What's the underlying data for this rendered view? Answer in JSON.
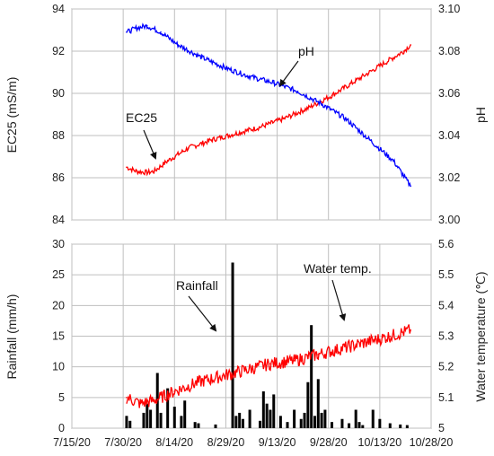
{
  "chart_data": [
    {
      "type": "line",
      "title": "",
      "xlabel": "",
      "ylabel_left": "EC25 (mS/m)",
      "ylabel_right": "pH",
      "ylim_left": [
        84,
        94
      ],
      "yticks_left": [
        "84",
        "86",
        "88",
        "90",
        "92",
        "94"
      ],
      "ylim_right": [
        3.0,
        3.1
      ],
      "yticks_right": [
        "3.00",
        "3.02",
        "3.04",
        "3.06",
        "3.08",
        "3.10"
      ],
      "xlim": [
        "2020-07-15",
        "2020-10-28"
      ],
      "grid": true,
      "series": [
        {
          "name": "EC25",
          "axis": "left",
          "color": "#ff0000",
          "x": [
            "2020-07-31",
            "2020-08-03",
            "2020-08-06",
            "2020-08-08",
            "2020-08-12",
            "2020-08-18",
            "2020-08-25",
            "2020-09-01",
            "2020-09-08",
            "2020-09-15",
            "2020-09-22",
            "2020-09-29",
            "2020-10-06",
            "2020-10-13",
            "2020-10-20",
            "2020-10-22"
          ],
          "values": [
            86.5,
            86.3,
            86.25,
            86.3,
            86.8,
            87.4,
            87.8,
            88.1,
            88.4,
            88.8,
            89.3,
            89.9,
            90.6,
            91.3,
            92.0,
            92.3
          ]
        },
        {
          "name": "pH",
          "axis": "right",
          "color": "#0000ff",
          "x": [
            "2020-07-31",
            "2020-08-03",
            "2020-08-06",
            "2020-08-10",
            "2020-08-15",
            "2020-08-22",
            "2020-08-29",
            "2020-09-05",
            "2020-09-12",
            "2020-09-19",
            "2020-09-26",
            "2020-10-03",
            "2020-10-10",
            "2020-10-17",
            "2020-10-22"
          ],
          "values": [
            3.089,
            3.091,
            3.092,
            3.089,
            3.083,
            3.077,
            3.072,
            3.068,
            3.065,
            3.061,
            3.055,
            3.048,
            3.038,
            3.028,
            3.016
          ]
        }
      ],
      "annotations": [
        {
          "text": "pH",
          "target": "pH"
        },
        {
          "text": "EC25",
          "target": "EC25"
        }
      ]
    },
    {
      "type": "bar",
      "title": "",
      "xlabel": "",
      "ylabel_left": "Rainfall (mm/h)",
      "ylabel_right": "Water temperature (℃)",
      "ylim_left": [
        0,
        30
      ],
      "yticks_left": [
        "0",
        "5",
        "10",
        "15",
        "20",
        "25",
        "30"
      ],
      "ylim_right": [
        5.0,
        5.6
      ],
      "yticks_right": [
        "5",
        "5.1",
        "5.2",
        "5.3",
        "5.4",
        "5.5",
        "5.6"
      ],
      "xlim": [
        "2020-07-15",
        "2020-10-28"
      ],
      "xticks": [
        "7/15/20",
        "7/30/20",
        "8/14/20",
        "8/29/20",
        "9/13/20",
        "9/28/20",
        "10/13/20",
        "10/28/20"
      ],
      "grid": true,
      "series": [
        {
          "name": "Rainfall",
          "axis": "left",
          "type": "bar",
          "color": "#000000",
          "x": [
            "2020-07-31",
            "2020-08-01",
            "2020-08-05",
            "2020-08-06",
            "2020-08-07",
            "2020-08-09",
            "2020-08-10",
            "2020-08-12",
            "2020-08-14",
            "2020-08-16",
            "2020-08-17",
            "2020-08-20",
            "2020-08-21",
            "2020-08-26",
            "2020-08-31",
            "2020-09-01",
            "2020-09-02",
            "2020-09-03",
            "2020-09-05",
            "2020-09-08",
            "2020-09-09",
            "2020-09-10",
            "2020-09-11",
            "2020-09-12",
            "2020-09-14",
            "2020-09-16",
            "2020-09-18",
            "2020-09-20",
            "2020-09-21",
            "2020-09-22",
            "2020-09-23",
            "2020-09-24",
            "2020-09-25",
            "2020-09-26",
            "2020-09-27",
            "2020-09-29",
            "2020-10-02",
            "2020-10-04",
            "2020-10-06",
            "2020-10-07",
            "2020-10-08",
            "2020-10-11",
            "2020-10-13",
            "2020-10-16",
            "2020-10-19",
            "2020-10-21"
          ],
          "values": [
            2.0,
            1.2,
            2.5,
            4.0,
            3.0,
            9.0,
            2.5,
            6.5,
            3.5,
            2.0,
            4.5,
            1.0,
            0.8,
            0.6,
            27.0,
            2.0,
            2.5,
            1.5,
            3.0,
            1.2,
            6.0,
            4.0,
            3.0,
            5.5,
            2.0,
            1.0,
            3.0,
            1.5,
            2.5,
            7.5,
            16.8,
            2.0,
            8.0,
            2.5,
            3.0,
            1.0,
            1.5,
            0.8,
            3.0,
            1.0,
            0.5,
            3.0,
            1.5,
            0.8,
            0.6,
            0.5
          ]
        },
        {
          "name": "Water temp.",
          "axis": "right",
          "type": "line",
          "color": "#ff0000",
          "x": [
            "2020-07-31",
            "2020-08-04",
            "2020-08-08",
            "2020-08-14",
            "2020-08-21",
            "2020-08-28",
            "2020-09-04",
            "2020-09-11",
            "2020-09-18",
            "2020-09-25",
            "2020-10-02",
            "2020-10-09",
            "2020-10-16",
            "2020-10-22"
          ],
          "values": [
            5.1,
            5.08,
            5.09,
            5.12,
            5.15,
            5.17,
            5.19,
            5.21,
            5.22,
            5.24,
            5.26,
            5.28,
            5.3,
            5.32
          ]
        }
      ],
      "annotations": [
        {
          "text": "Rainfall",
          "target": "Rainfall"
        },
        {
          "text": "Water temp.",
          "target": "Water temp."
        }
      ]
    }
  ]
}
